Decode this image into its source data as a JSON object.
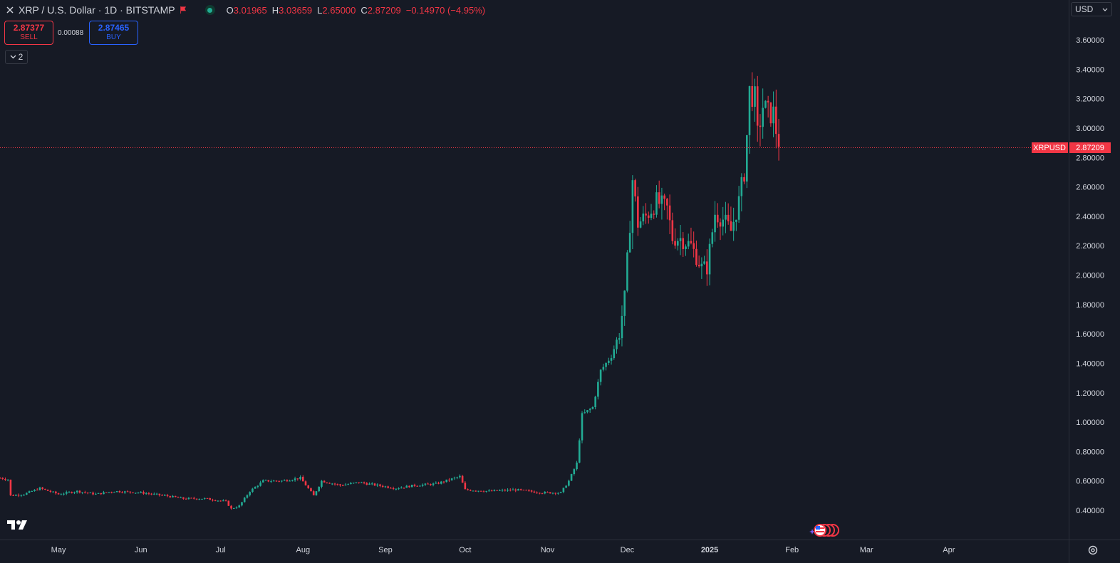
{
  "header": {
    "title": "XRP / U.S. Dollar · 1D · BITSTAMP",
    "ohlc": [
      {
        "key": "O",
        "value": "3.01965"
      },
      {
        "key": "H",
        "value": "3.03659"
      },
      {
        "key": "L",
        "value": "2.65000"
      },
      {
        "key": "C",
        "value": "2.87209"
      }
    ],
    "change": "−0.14970 (−4.95%)"
  },
  "trade": {
    "sell_price": "2.87377",
    "sell_label": "SELL",
    "buy_price": "2.87465",
    "buy_label": "BUY",
    "spread": "0.00088"
  },
  "indicators_toggle": {
    "count": "2"
  },
  "currency": "USD",
  "price_label": {
    "symbol": "XRPUSD",
    "value": "2.87209"
  },
  "colors": {
    "background": "#161a25",
    "up": "#22ab94",
    "down": "#f23645",
    "grid": "#1f2330",
    "axis_text": "#d1d4dc"
  },
  "chart_data": {
    "type": "candlestick",
    "title": "XRP / U.S. Dollar · 1D · BITSTAMP",
    "price_axis": {
      "ticks": [
        "3.60000",
        "3.40000",
        "3.20000",
        "3.00000",
        "2.80000",
        "2.60000",
        "2.40000",
        "2.20000",
        "2.00000",
        "1.80000",
        "1.60000",
        "1.40000",
        "1.20000",
        "1.00000",
        "0.80000",
        "0.60000",
        "0.40000"
      ],
      "ylim": [
        0.27,
        3.66
      ]
    },
    "time_axis": {
      "labels": [
        "May",
        "Jun",
        "Jul",
        "Aug",
        "Sep",
        "Oct",
        "Nov",
        "Dec",
        "2025",
        "Feb",
        "Mar",
        "Apr"
      ],
      "start": "2024-04-09",
      "end": "2025-04-30"
    },
    "last_price": 2.87209,
    "price_path": [
      [
        "2024-04-09",
        0.62
      ],
      [
        "2024-04-12",
        0.61
      ],
      [
        "2024-04-13",
        0.5
      ],
      [
        "2024-04-18",
        0.51
      ],
      [
        "2024-04-24",
        0.55
      ],
      [
        "2024-05-01",
        0.51
      ],
      [
        "2024-05-08",
        0.53
      ],
      [
        "2024-05-15",
        0.51
      ],
      [
        "2024-05-22",
        0.53
      ],
      [
        "2024-06-01",
        0.52
      ],
      [
        "2024-06-10",
        0.5
      ],
      [
        "2024-06-17",
        0.48
      ],
      [
        "2024-06-25",
        0.48
      ],
      [
        "2024-07-03",
        0.46
      ],
      [
        "2024-07-05",
        0.41
      ],
      [
        "2024-07-08",
        0.43
      ],
      [
        "2024-07-12",
        0.53
      ],
      [
        "2024-07-17",
        0.6
      ],
      [
        "2024-07-24",
        0.6
      ],
      [
        "2024-07-31",
        0.62
      ],
      [
        "2024-08-05",
        0.5
      ],
      [
        "2024-08-08",
        0.6
      ],
      [
        "2024-08-15",
        0.57
      ],
      [
        "2024-08-22",
        0.59
      ],
      [
        "2024-08-29",
        0.57
      ],
      [
        "2024-09-05",
        0.55
      ],
      [
        "2024-09-12",
        0.57
      ],
      [
        "2024-09-20",
        0.58
      ],
      [
        "2024-09-29",
        0.63
      ],
      [
        "2024-10-01",
        0.54
      ],
      [
        "2024-10-10",
        0.53
      ],
      [
        "2024-10-20",
        0.54
      ],
      [
        "2024-10-30",
        0.52
      ],
      [
        "2024-11-06",
        0.52
      ],
      [
        "2024-11-09",
        0.6
      ],
      [
        "2024-11-12",
        0.72
      ],
      [
        "2024-11-14",
        1.05
      ],
      [
        "2024-11-18",
        1.1
      ],
      [
        "2024-11-21",
        1.35
      ],
      [
        "2024-11-25",
        1.45
      ],
      [
        "2024-11-28",
        1.6
      ],
      [
        "2024-11-30",
        1.85
      ],
      [
        "2024-12-02",
        2.35
      ],
      [
        "2024-12-03",
        2.65
      ],
      [
        "2024-12-05",
        2.35
      ],
      [
        "2024-12-08",
        2.4
      ],
      [
        "2024-12-12",
        2.5
      ],
      [
        "2024-12-16",
        2.45
      ],
      [
        "2024-12-18",
        2.25
      ],
      [
        "2024-12-21",
        2.25
      ],
      [
        "2024-12-25",
        2.2
      ],
      [
        "2024-12-29",
        2.05
      ],
      [
        "2024-12-31",
        2.05
      ],
      [
        "2025-01-03",
        2.42
      ],
      [
        "2025-01-06",
        2.38
      ],
      [
        "2025-01-09",
        2.3
      ],
      [
        "2025-01-12",
        2.5
      ],
      [
        "2025-01-14",
        2.7
      ],
      [
        "2025-01-15",
        2.95
      ],
      [
        "2025-01-16",
        3.25
      ],
      [
        "2025-01-18",
        3.2
      ],
      [
        "2025-01-19",
        2.95
      ],
      [
        "2025-01-21",
        3.15
      ],
      [
        "2025-01-23",
        3.1
      ],
      [
        "2025-01-25",
        3.1
      ],
      [
        "2025-01-27",
        2.87
      ]
    ]
  }
}
